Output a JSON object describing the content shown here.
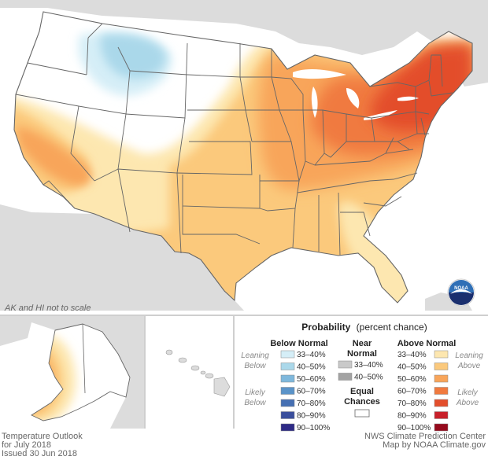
{
  "map": {
    "scale_note": "AK and HI not to scale",
    "colors": {
      "ocean": "#ffffff",
      "land_outside": "#dcdcdc",
      "white_area": "#ffffff",
      "state_border": "#666666"
    }
  },
  "legend": {
    "title": "Probability",
    "title_suffix": "(percent chance)",
    "below": {
      "heading": "Below Normal",
      "leaning_label": [
        "Leaning",
        "Below"
      ],
      "likely_label": [
        "Likely",
        "Below"
      ],
      "bins": [
        {
          "label": "33–40%",
          "color": "#d5eef7"
        },
        {
          "label": "40–50%",
          "color": "#aad8ea"
        },
        {
          "label": "50–60%",
          "color": "#7fb8dc"
        },
        {
          "label": "60–70%",
          "color": "#5a93c8"
        },
        {
          "label": "70–80%",
          "color": "#4670b3"
        },
        {
          "label": "80–90%",
          "color": "#3a4e9c"
        },
        {
          "label": "90–100%",
          "color": "#2e2a86"
        }
      ]
    },
    "near": {
      "heading": [
        "Near",
        "Normal"
      ],
      "bins": [
        {
          "label": "33–40%",
          "color": "#c9c9c9"
        },
        {
          "label": "40–50%",
          "color": "#a3a3a3"
        }
      ]
    },
    "equal": {
      "heading": [
        "Equal",
        "Chances"
      ],
      "color": "#ffffff"
    },
    "above": {
      "heading": "Above Normal",
      "leaning_label": [
        "Leaning",
        "Above"
      ],
      "likely_label": [
        "Likely",
        "Above"
      ],
      "bins": [
        {
          "label": "33–40%",
          "color": "#fde7b0"
        },
        {
          "label": "40–50%",
          "color": "#fbc97c"
        },
        {
          "label": "50–60%",
          "color": "#f8a55a"
        },
        {
          "label": "60–70%",
          "color": "#f07a3f"
        },
        {
          "label": "70–80%",
          "color": "#e34e2c"
        },
        {
          "label": "80–90%",
          "color": "#c8202a"
        },
        {
          "label": "90–100%",
          "color": "#960a1d"
        }
      ]
    }
  },
  "footer": {
    "left": [
      "Temperature Outlook",
      "for July 2018",
      "Issued 30 Jun 2018"
    ],
    "right": [
      "NWS Climate Prediction Center",
      "Map by NOAA Climate.gov"
    ]
  },
  "logo": {
    "text": "NOAA",
    "colors": {
      "top": "#2f6fb6",
      "bottom": "#1a2f6e",
      "gull": "#ffffff"
    }
  }
}
